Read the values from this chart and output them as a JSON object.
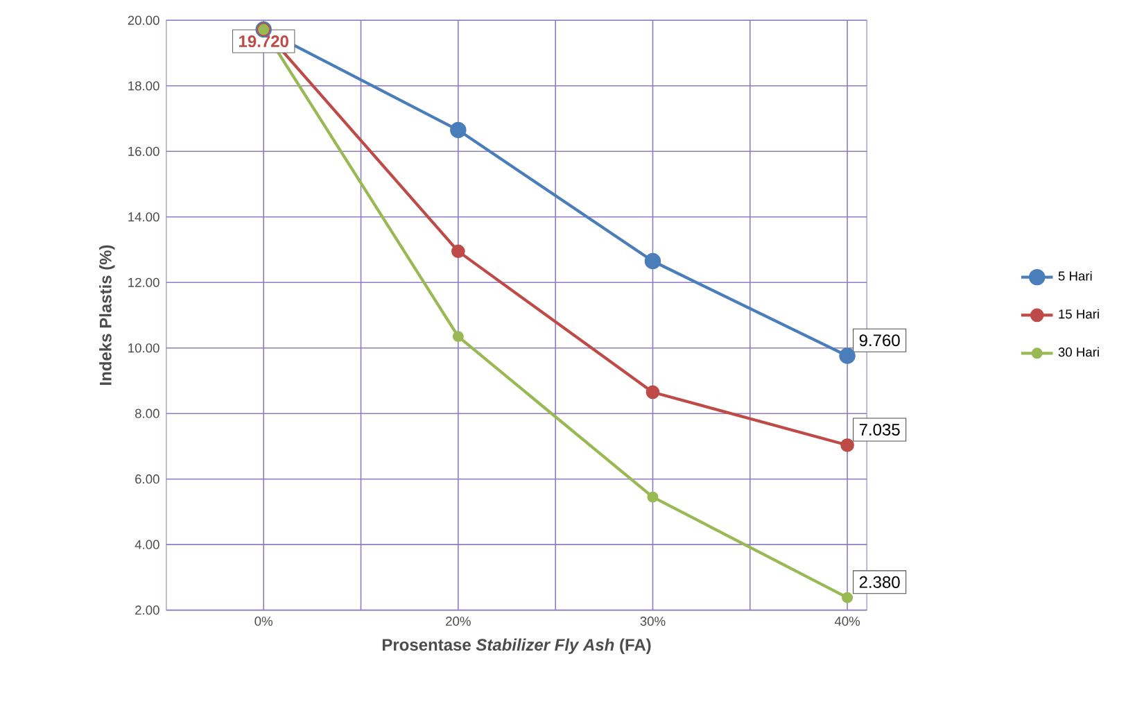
{
  "chart_data": {
    "type": "line",
    "xlabel": "Prosentase *Stabilizer Fly Ash* (FA)",
    "ylabel": "Indeks Plastis  (%)",
    "categories": [
      "0%",
      "20%",
      "30%",
      "40%"
    ],
    "series": [
      {
        "name": "5   Hari",
        "color": "#4a7ebb",
        "values": [
          19.72,
          16.65,
          12.65,
          9.76
        ],
        "value_labels": [
          null,
          null,
          null,
          "9.760"
        ]
      },
      {
        "name": "15 Hari",
        "color": "#be4b48",
        "values": [
          19.72,
          12.95,
          8.65,
          7.035
        ],
        "value_labels": [
          "19.720",
          null,
          null,
          "7.035"
        ]
      },
      {
        "name": "30 Hari",
        "color": "#98b954",
        "values": [
          19.72,
          10.35,
          5.45,
          2.38
        ],
        "value_labels": [
          null,
          null,
          null,
          "2.380"
        ]
      }
    ],
    "ylim": [
      2,
      20
    ],
    "yticks": [
      {
        "value": 2,
        "label": "2.00"
      },
      {
        "value": 4,
        "label": "4.00"
      },
      {
        "value": 6,
        "label": "6.00"
      },
      {
        "value": 8,
        "label": "8.00"
      },
      {
        "value": 10,
        "label": "10.00"
      },
      {
        "value": 12,
        "label": "12.00"
      },
      {
        "value": 14,
        "label": "14.00"
      },
      {
        "value": 16,
        "label": "16.00"
      },
      {
        "value": 18,
        "label": "18.00"
      },
      {
        "value": 20,
        "label": "20.00"
      }
    ],
    "grid": true,
    "legend": "right",
    "marker": "circle",
    "line_style": "solid"
  }
}
